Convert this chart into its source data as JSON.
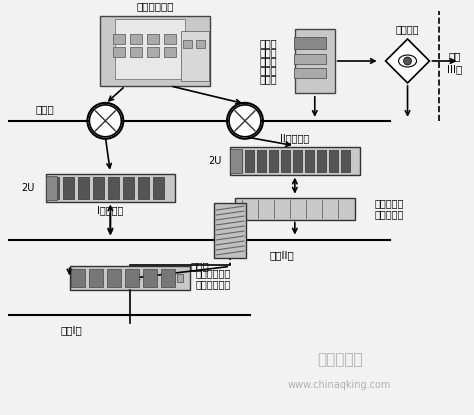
{
  "bg_color": "#f2f2f2",
  "labels": {
    "dispatch_center": "调度控制中心",
    "dispatch_zone": "调度端",
    "zone3_system_line1": "继电保",
    "zone3_system_line2": "护在线",
    "zone3_system_line3": "监测与",
    "zone3_system_line4": "故障诊",
    "zone3_system_line5": "断系统",
    "isolation_device": "隔离装置",
    "safety_zone3_line1": "安全",
    "safety_zone3_line2": "III区",
    "zone2_switch": "II区交换机",
    "zone1_switch": "I区交换机",
    "firewall": "防火墙",
    "safety_zone2": "安全II区",
    "safety_zone1": "安全I区",
    "protection_device_line1": "保护设备在线",
    "protection_device_line2": "监测诊断装置",
    "packet_analyzer_line1": "网络报文记",
    "packet_analyzer_line2": "录分析装置",
    "label_2u_left": "2U",
    "label_2u_right": "2U",
    "watermark1": "中国期刊网",
    "watermark2": "www.chinaqking.com"
  },
  "colors": {
    "bg": "#f2f2f2",
    "device_fill": "#d0d0d0",
    "device_fill_light": "#e8e8e8",
    "line_color": "#222222",
    "watermark": "#b0b0b0"
  }
}
